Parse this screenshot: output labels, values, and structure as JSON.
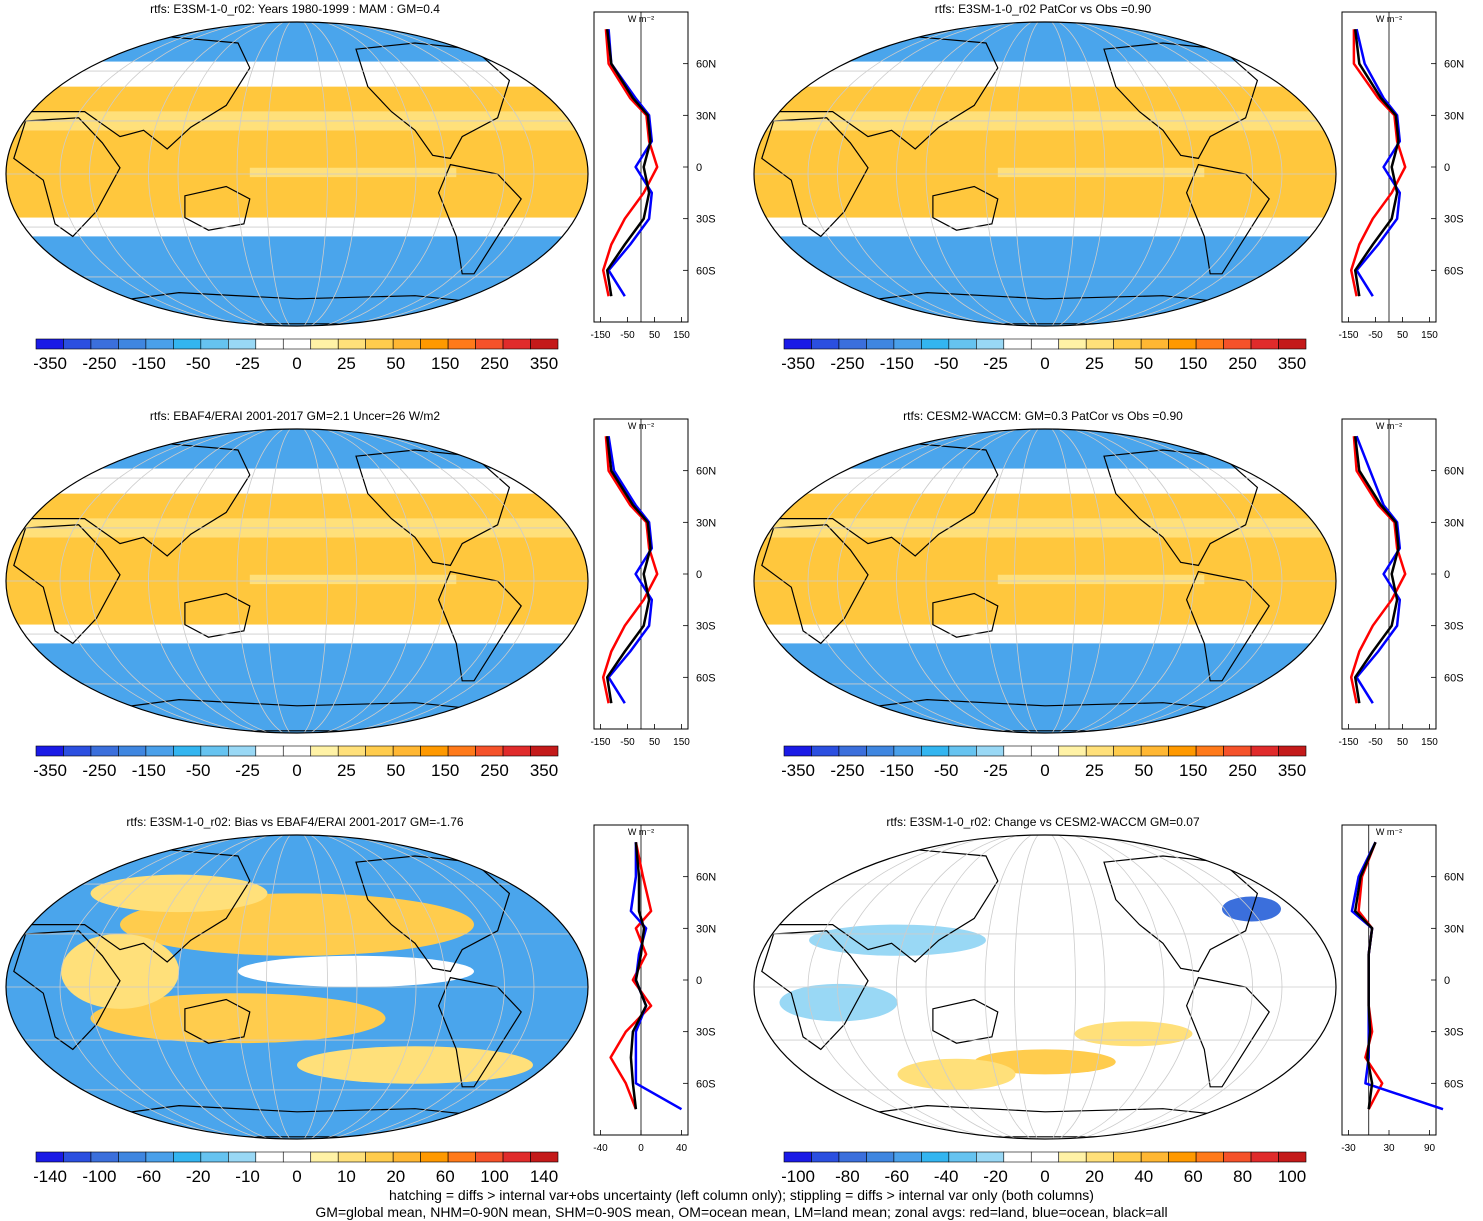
{
  "palette": [
    "#1a1ae6",
    "#2b4fe0",
    "#3b6fdc",
    "#3f86e0",
    "#4aa0ea",
    "#33b5f0",
    "#66c3f0",
    "#99d8f5",
    "#ffffff",
    "#ffffff",
    "#fff2a6",
    "#ffe07a",
    "#ffcc4d",
    "#ffb733",
    "#ff9900",
    "#ff7a1a",
    "#f5522a",
    "#e02b2b",
    "#c41a1a"
  ],
  "colors": {
    "land_zonal": "#ff0000",
    "ocean_zonal": "#0000ff",
    "all_zonal": "#000000",
    "ocean_warm": "#ffc73d",
    "ocean_cool": "#4aa5ec",
    "neutral": "#ffffff"
  },
  "lat_labels": [
    "60N",
    "30N",
    "0",
    "30S",
    "60S"
  ],
  "zonal_unit": "W m⁻²",
  "panels": [
    {
      "title": "rtfs: E3SM-1-0_r02: Years 1980-1999 : MAM : GM=0.4",
      "cbar_labels": [
        "-350",
        "-250",
        "-150",
        "-50",
        "-25",
        "0",
        "25",
        "50",
        "150",
        "250",
        "350"
      ],
      "zonal_ticks": [
        "-150",
        "-50",
        "50",
        "150"
      ]
    },
    {
      "title": "rtfs: E3SM-1-0_r02 PatCor vs Obs =0.90",
      "cbar_labels": [
        "-350",
        "-250",
        "-150",
        "-50",
        "-25",
        "0",
        "25",
        "50",
        "150",
        "250",
        "350"
      ],
      "zonal_ticks": [
        "-150",
        "-50",
        "50",
        "150"
      ]
    },
    {
      "title": "rtfs: EBAF4/ERAI 2001-2017 GM=2.1 Uncer=26 W/m2",
      "cbar_labels": [
        "-350",
        "-250",
        "-150",
        "-50",
        "-25",
        "0",
        "25",
        "50",
        "150",
        "250",
        "350"
      ],
      "zonal_ticks": [
        "-150",
        "-50",
        "50",
        "150"
      ]
    },
    {
      "title": "rtfs: CESM2-WACCM: GM=0.3 PatCor vs Obs =0.90",
      "cbar_labels": [
        "-350",
        "-250",
        "-150",
        "-50",
        "-25",
        "0",
        "25",
        "50",
        "150",
        "250",
        "350"
      ],
      "zonal_ticks": [
        "-150",
        "-50",
        "50",
        "150"
      ]
    },
    {
      "title": "rtfs: E3SM-1-0_r02: Bias vs EBAF4/ERAI 2001-2017 GM=-1.76",
      "cbar_labels": [
        "-140",
        "-100",
        "-60",
        "-20",
        "-10",
        "0",
        "10",
        "20",
        "60",
        "100",
        "140"
      ],
      "zonal_ticks": [
        "-40",
        "0",
        "40"
      ]
    },
    {
      "title": "rtfs: E3SM-1-0_r02: Change vs CESM2-WACCM GM=0.07",
      "cbar_labels": [
        "-100",
        "-80",
        "-60",
        "-40",
        "-20",
        "0",
        "20",
        "40",
        "60",
        "80",
        "100"
      ],
      "zonal_ticks": [
        "-30",
        "30",
        "90"
      ]
    }
  ],
  "footer": {
    "line1": "hatching = diffs > internal var+obs uncertainty (left column only); stippling = diffs > internal var only (both columns)",
    "line2": "GM=global mean, NHM=0-90N mean, SHM=0-90S mean, OM=ocean mean, LM=land mean; zonal avgs: red=land, blue=ocean, black=all"
  },
  "chart_data": [
    {
      "type": "heatmap",
      "title": "rtfs: E3SM-1-0_r02: Years 1980-1999 : MAM : GM=0.4",
      "colorbar": [
        -350,
        -250,
        -150,
        -50,
        -25,
        0,
        25,
        50,
        150,
        250,
        350
      ],
      "zonal_avg": {
        "lat": [
          80,
          60,
          40,
          30,
          15,
          0,
          -15,
          -30,
          -45,
          -60,
          -75
        ],
        "land": [
          -130,
          -120,
          -40,
          20,
          30,
          60,
          10,
          -60,
          -110,
          -140,
          -120
        ],
        "ocean": [
          -120,
          -110,
          -20,
          30,
          40,
          -20,
          40,
          30,
          -40,
          -120,
          -60
        ],
        "all": [
          -125,
          -110,
          -30,
          25,
          35,
          10,
          30,
          10,
          -60,
          -125,
          -110
        ]
      }
    },
    {
      "type": "heatmap",
      "title": "rtfs: E3SM-1-0_r02 PatCor vs Obs =0.90",
      "colorbar": [
        -350,
        -250,
        -150,
        -50,
        -25,
        0,
        25,
        50,
        150,
        250,
        350
      ],
      "zonal_avg": {
        "lat": [
          80,
          60,
          40,
          30,
          15,
          0,
          -15,
          -30,
          -45,
          -60,
          -75
        ],
        "land": [
          -130,
          -130,
          -40,
          20,
          30,
          60,
          10,
          -60,
          -110,
          -140,
          -120
        ],
        "ocean": [
          -120,
          -90,
          -20,
          30,
          40,
          -20,
          40,
          30,
          -40,
          -120,
          -60
        ],
        "all": [
          -125,
          -110,
          -30,
          25,
          35,
          10,
          30,
          10,
          -60,
          -125,
          -110
        ]
      }
    },
    {
      "type": "heatmap",
      "title": "rtfs: EBAF4/ERAI 2001-2017 GM=2.1 Uncer=26 W/m2",
      "colorbar": [
        -350,
        -250,
        -150,
        -50,
        -25,
        0,
        25,
        50,
        150,
        250,
        350
      ],
      "zonal_avg": {
        "lat": [
          80,
          60,
          40,
          30,
          15,
          0,
          -15,
          -30,
          -45,
          -60,
          -75
        ],
        "land": [
          -130,
          -120,
          -40,
          20,
          30,
          60,
          10,
          -60,
          -110,
          -140,
          -120
        ],
        "ocean": [
          -120,
          -100,
          -20,
          30,
          40,
          -20,
          40,
          30,
          -40,
          -120,
          -60
        ],
        "all": [
          -125,
          -110,
          -30,
          25,
          35,
          10,
          30,
          10,
          -60,
          -125,
          -110
        ]
      }
    },
    {
      "type": "heatmap",
      "title": "rtfs: CESM2-WACCM: GM=0.3 PatCor vs Obs =0.90",
      "colorbar": [
        -350,
        -250,
        -150,
        -50,
        -25,
        0,
        25,
        50,
        150,
        250,
        350
      ],
      "zonal_avg": {
        "lat": [
          80,
          60,
          40,
          30,
          15,
          0,
          -15,
          -30,
          -45,
          -60,
          -75
        ],
        "land": [
          -130,
          -120,
          -40,
          20,
          30,
          60,
          10,
          -60,
          -110,
          -140,
          -120
        ],
        "ocean": [
          -120,
          -70,
          -20,
          30,
          40,
          -20,
          40,
          30,
          -40,
          -120,
          -60
        ],
        "all": [
          -125,
          -110,
          -30,
          25,
          35,
          10,
          30,
          10,
          -60,
          -125,
          -110
        ]
      }
    },
    {
      "type": "heatmap",
      "title": "rtfs: E3SM-1-0_r02: Bias vs EBAF4/ERAI 2001-2017 GM=-1.76",
      "colorbar": [
        -140,
        -100,
        -60,
        -20,
        -10,
        0,
        10,
        20,
        60,
        100,
        140
      ],
      "zonal_avg": {
        "lat": [
          80,
          60,
          40,
          30,
          15,
          0,
          -15,
          -30,
          -45,
          -60,
          -75
        ],
        "land": [
          -5,
          2,
          10,
          -5,
          5,
          -8,
          10,
          -15,
          -30,
          -15,
          -5
        ],
        "ocean": [
          -5,
          -5,
          -10,
          5,
          -2,
          -5,
          5,
          -5,
          -5,
          -5,
          40
        ],
        "all": [
          -5,
          -2,
          -2,
          3,
          0,
          -5,
          5,
          -8,
          -10,
          -8,
          -5
        ]
      }
    },
    {
      "type": "heatmap",
      "title": "rtfs: E3SM-1-0_r02: Change vs CESM2-WACCM GM=0.07",
      "colorbar": [
        -100,
        -80,
        -60,
        -40,
        -20,
        0,
        20,
        40,
        60,
        80,
        100
      ],
      "zonal_avg": {
        "lat": [
          80,
          60,
          40,
          30,
          15,
          0,
          -15,
          -30,
          -45,
          -60,
          -75
        ],
        "land": [
          10,
          -10,
          -15,
          5,
          0,
          0,
          0,
          5,
          -5,
          20,
          0
        ],
        "ocean": [
          10,
          -15,
          -25,
          5,
          0,
          0,
          0,
          0,
          0,
          -5,
          110
        ],
        "all": [
          10,
          -12,
          -20,
          5,
          0,
          0,
          0,
          2,
          -2,
          5,
          0
        ]
      }
    }
  ]
}
